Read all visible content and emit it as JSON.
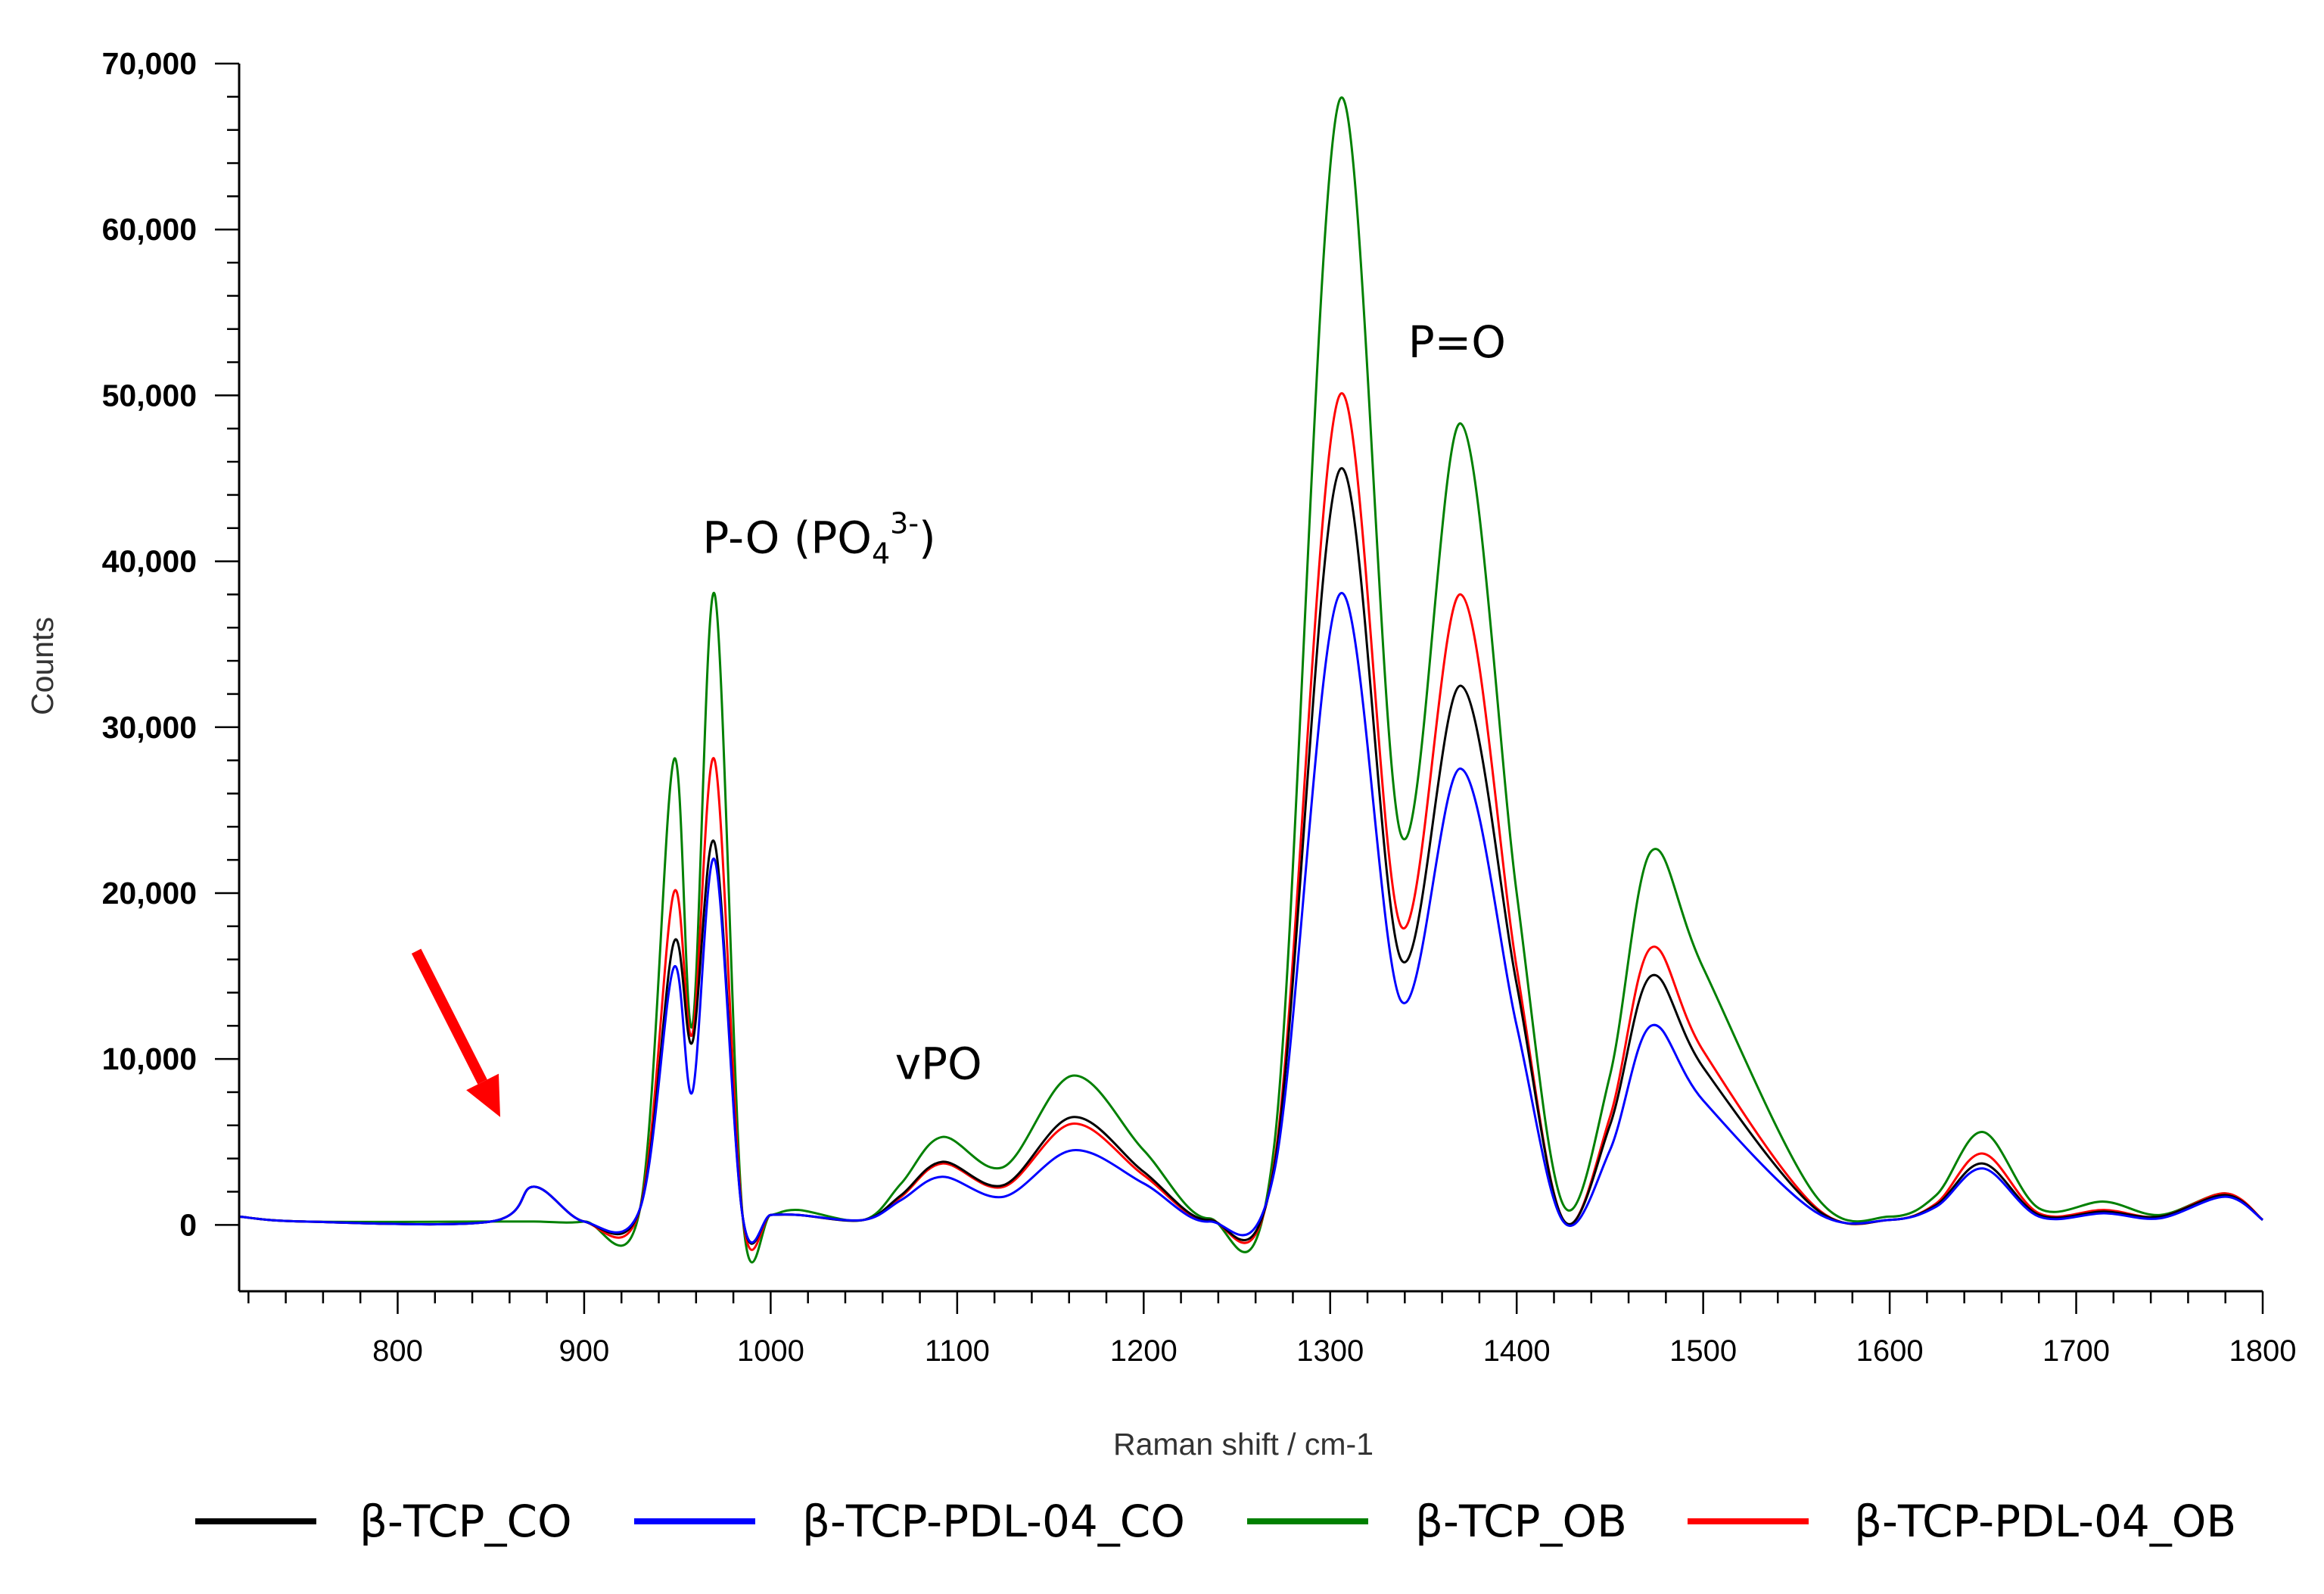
{
  "chart_data": {
    "type": "line",
    "xlabel": "Raman shift / cm-1",
    "ylabel": "Counts",
    "xlim": [
      715,
      1800
    ],
    "ylim": [
      -4000,
      70000
    ],
    "xticks": [
      800,
      900,
      1000,
      1100,
      1200,
      1300,
      1400,
      1500,
      1600,
      1700,
      1800
    ],
    "xtick_labels": [
      "800",
      "900",
      "1000",
      "1100",
      "1200",
      "1300",
      "1400",
      "1500",
      "1600",
      "1700",
      "1800"
    ],
    "yticks": [
      0,
      10000,
      20000,
      30000,
      40000,
      50000,
      60000,
      70000
    ],
    "ytick_labels": [
      "0",
      "10,000",
      "20,000",
      "30,000",
      "40,000",
      "50,000",
      "60,000",
      "70,000"
    ],
    "grid": false,
    "legend_position": "bottom",
    "annotations": [
      {
        "base": "P-O (PO",
        "sub": "4",
        "sup": "3-",
        "tail": ")",
        "x": 1000,
        "y": 40500
      },
      {
        "text": "vPO",
        "x": 1090,
        "y": 8800
      },
      {
        "text": "P=O",
        "x": 1368,
        "y": 52300
      }
    ],
    "arrow": {
      "from": [
        810,
        16500
      ],
      "to": [
        855,
        6500
      ],
      "color": "#ff0000"
    },
    "peak_positions": [
      715,
      750,
      850,
      873,
      900,
      930,
      948,
      958,
      970,
      985,
      1000,
      1015,
      1050,
      1070,
      1092,
      1125,
      1162,
      1200,
      1235,
      1270,
      1305,
      1338,
      1370,
      1400,
      1425,
      1450,
      1472,
      1500,
      1560,
      1600,
      1625,
      1650,
      1680,
      1715,
      1745,
      1780,
      1800
    ],
    "series": [
      {
        "name": "β-TCP_CO",
        "color": "#000000",
        "values": [
          500,
          200,
          200,
          2300,
          200,
          1000,
          17000,
          11000,
          23000,
          500,
          600,
          600,
          300,
          1800,
          3800,
          2400,
          6500,
          3200,
          300,
          3500,
          45500,
          16000,
          32500,
          14500,
          300,
          6000,
          15000,
          9500,
          1000,
          300,
          1200,
          3700,
          600,
          800,
          500,
          1800,
          300
        ]
      },
      {
        "name": "β-TCP-PDL-04_CO",
        "color": "#0000ff",
        "values": [
          500,
          200,
          200,
          2300,
          200,
          1000,
          15500,
          8000,
          22000,
          500,
          600,
          600,
          300,
          1500,
          2900,
          1700,
          4500,
          2500,
          200,
          3200,
          38000,
          13500,
          27500,
          12000,
          200,
          4500,
          12000,
          7500,
          800,
          300,
          1100,
          3400,
          500,
          700,
          400,
          1700,
          300
        ]
      },
      {
        "name": "β-TCP_OB",
        "color": "#008000",
        "values": [
          500,
          200,
          200,
          200,
          200,
          1000,
          28000,
          12000,
          38000,
          500,
          600,
          900,
          300,
          2500,
          5300,
          3500,
          9000,
          4500,
          400,
          4800,
          67800,
          23500,
          48300,
          20000,
          1200,
          9000,
          22500,
          15500,
          1800,
          500,
          1800,
          5600,
          1000,
          1400,
          600,
          1900,
          300
        ]
      },
      {
        "name": "β-TCP-PDL-04_OB",
        "color": "#ff0000",
        "values": [
          500,
          200,
          200,
          2300,
          200,
          1000,
          20000,
          11500,
          28000,
          500,
          600,
          600,
          300,
          1700,
          3700,
          2300,
          6100,
          3000,
          300,
          3700,
          50000,
          18000,
          38000,
          15500,
          300,
          6500,
          16700,
          10500,
          1100,
          300,
          1300,
          4300,
          700,
          900,
          500,
          1900,
          300
        ]
      }
    ]
  }
}
